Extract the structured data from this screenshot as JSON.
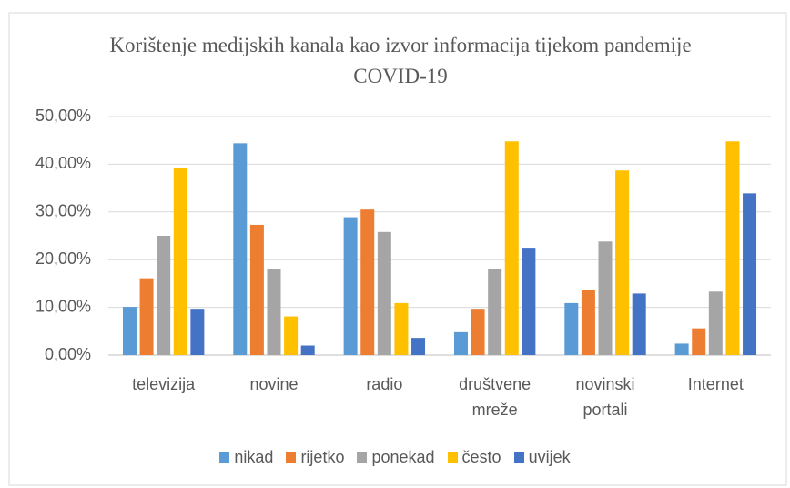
{
  "chart_data": {
    "type": "bar",
    "title": "Korištenje medijskih kanala kao izvor informacija tijekom pandemije COVID-19",
    "categories": [
      "televizija",
      "novine",
      "radio",
      "društvene mreže",
      "novinski portali",
      "Internet"
    ],
    "series": [
      {
        "name": "nikad",
        "color": "#5B9BD5",
        "values": [
          10.1,
          44.4,
          28.9,
          4.8,
          10.9,
          2.4
        ]
      },
      {
        "name": "rijetko",
        "color": "#ED7D31",
        "values": [
          16.1,
          27.3,
          30.5,
          9.7,
          13.7,
          5.6
        ]
      },
      {
        "name": "ponekad",
        "color": "#A5A5A5",
        "values": [
          25.0,
          18.1,
          25.8,
          18.1,
          23.8,
          13.3
        ]
      },
      {
        "name": "često",
        "color": "#FFC000",
        "values": [
          39.2,
          8.1,
          10.9,
          44.8,
          38.7,
          44.8
        ]
      },
      {
        "name": "uvijek",
        "color": "#4472C4",
        "values": [
          9.7,
          2.0,
          3.6,
          22.5,
          12.9,
          33.9
        ]
      }
    ],
    "ylim": [
      0,
      50
    ],
    "yticks": [
      {
        "value": 0,
        "label": "0,00%"
      },
      {
        "value": 10,
        "label": "10,00%"
      },
      {
        "value": 20,
        "label": "20,00%"
      },
      {
        "value": 30,
        "label": "30,00%"
      },
      {
        "value": 40,
        "label": "40,00%"
      },
      {
        "value": 50,
        "label": "50,00%"
      }
    ],
    "grid": true,
    "legend": "bottom"
  }
}
